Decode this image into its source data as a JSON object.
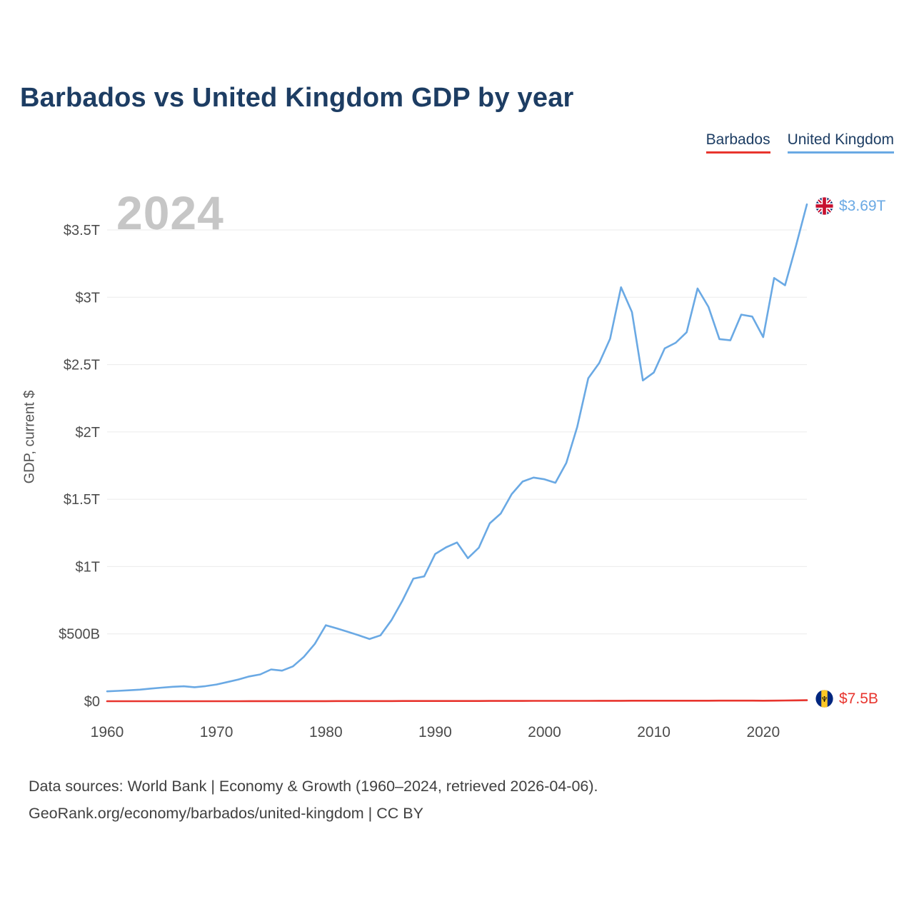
{
  "title": "Barbados vs United Kingdom GDP by year",
  "footer": {
    "line1": "Data sources: World Bank | Economy & Growth (1960–2024, retrieved 2026-04-06).",
    "line2": "GeoRank.org/economy/barbados/united-kingdom | CC BY"
  },
  "chart_data": {
    "type": "line",
    "title": "Barbados vs United Kingdom GDP by year",
    "xlabel": "",
    "ylabel": "GDP, current $",
    "watermark": "2024",
    "units": "billions of current US$",
    "legend_position": "top-right",
    "grid": "horizontal",
    "ylim": [
      0,
      3700
    ],
    "x": [
      1960,
      1961,
      1962,
      1963,
      1964,
      1965,
      1966,
      1967,
      1968,
      1969,
      1970,
      1971,
      1972,
      1973,
      1974,
      1975,
      1976,
      1977,
      1978,
      1979,
      1980,
      1981,
      1982,
      1983,
      1984,
      1985,
      1986,
      1987,
      1988,
      1989,
      1990,
      1991,
      1992,
      1993,
      1994,
      1995,
      1996,
      1997,
      1998,
      1999,
      2000,
      2001,
      2002,
      2003,
      2004,
      2005,
      2006,
      2007,
      2008,
      2009,
      2010,
      2011,
      2012,
      2013,
      2014,
      2015,
      2016,
      2017,
      2018,
      2019,
      2020,
      2021,
      2022,
      2023,
      2024
    ],
    "series": [
      {
        "name": "Barbados",
        "color": "#e8352e",
        "end_value_label": "$7.5B",
        "values": [
          0.08,
          0.09,
          0.09,
          0.1,
          0.11,
          0.12,
          0.13,
          0.14,
          0.15,
          0.17,
          0.19,
          0.21,
          0.23,
          0.27,
          0.33,
          0.38,
          0.41,
          0.45,
          0.52,
          0.61,
          0.77,
          0.87,
          0.93,
          0.99,
          1.1,
          1.18,
          1.3,
          1.43,
          1.56,
          1.68,
          1.72,
          1.7,
          1.6,
          1.66,
          1.73,
          1.86,
          1.95,
          2.09,
          2.27,
          2.44,
          2.56,
          2.55,
          2.48,
          2.7,
          2.83,
          3.0,
          3.22,
          3.43,
          3.6,
          3.5,
          3.63,
          3.7,
          3.71,
          3.74,
          3.82,
          3.91,
          4.11,
          4.27,
          4.43,
          4.5,
          3.9,
          4.26,
          5.21,
          6.2,
          7.5
        ]
      },
      {
        "name": "United Kingdom",
        "color": "#6aa9e4",
        "end_value_label": "$3.69T",
        "values": [
          73,
          77,
          81,
          86,
          94,
          101,
          107,
          111,
          104,
          112,
          124,
          142,
          161,
          184,
          199,
          236,
          227,
          259,
          330,
          426,
          564,
          541,
          516,
          490,
          462,
          489,
          601,
          745,
          910,
          927,
          1093,
          1143,
          1179,
          1062,
          1140,
          1321,
          1394,
          1538,
          1631,
          1661,
          1648,
          1622,
          1770,
          2038,
          2398,
          2511,
          2692,
          3074,
          2890,
          2382,
          2441,
          2620,
          2662,
          2740,
          3065,
          2928,
          2689,
          2680,
          2871,
          2857,
          2704,
          3143,
          3089,
          3381,
          3690
        ]
      }
    ],
    "y_ticks": [
      {
        "value": 0,
        "label": "$0"
      },
      {
        "value": 500,
        "label": "$500B"
      },
      {
        "value": 1000,
        "label": "$1T"
      },
      {
        "value": 1500,
        "label": "$1.5T"
      },
      {
        "value": 2000,
        "label": "$2T"
      },
      {
        "value": 2500,
        "label": "$2.5T"
      },
      {
        "value": 3000,
        "label": "$3T"
      },
      {
        "value": 3500,
        "label": "$3.5T"
      }
    ],
    "x_ticks": [
      1960,
      1970,
      1980,
      1990,
      2000,
      2010,
      2020
    ],
    "end_labels": [
      {
        "series": "Barbados",
        "text": "$7.5B"
      },
      {
        "series": "United Kingdom",
        "text": "$3.69T"
      }
    ]
  }
}
